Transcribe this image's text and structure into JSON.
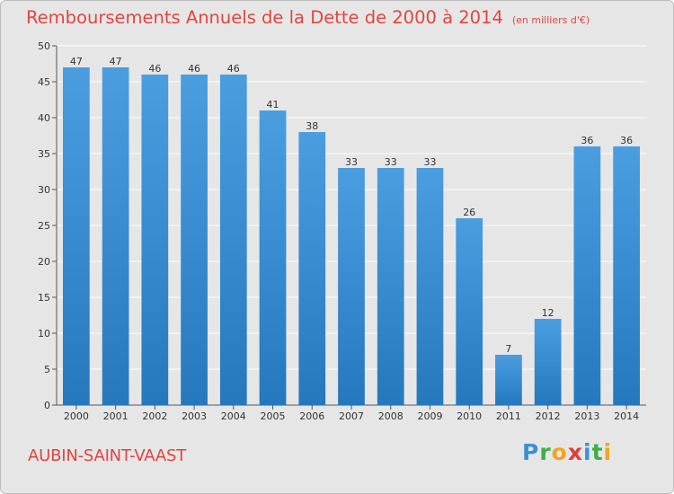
{
  "header": {
    "title": "Remboursements Annuels de la Dette de 2000 à 2014",
    "unit": "(en milliers d'€)"
  },
  "footer": {
    "city": "AUBIN-SAINT-VAAST",
    "logo_parts": [
      "P",
      "r",
      "o",
      "x",
      "i",
      "t",
      "i"
    ]
  },
  "chart_data": {
    "type": "bar",
    "title": "Remboursements Annuels de la Dette de 2000 à 2014",
    "subtitle": "(en milliers d'€)",
    "categories": [
      "2000",
      "2001",
      "2002",
      "2003",
      "2004",
      "2005",
      "2006",
      "2007",
      "2008",
      "2009",
      "2010",
      "2011",
      "2012",
      "2013",
      "2014"
    ],
    "values": [
      47,
      47,
      46,
      46,
      46,
      41,
      38,
      33,
      33,
      33,
      26,
      7,
      12,
      36,
      36
    ],
    "ylim": [
      0,
      50
    ],
    "yticks": [
      0,
      5,
      10,
      15,
      20,
      25,
      30,
      35,
      40,
      45,
      50
    ],
    "grid": true,
    "bar_color": "#4a9ee0",
    "bar_color_dark": "#2678bd",
    "legend": "none"
  }
}
